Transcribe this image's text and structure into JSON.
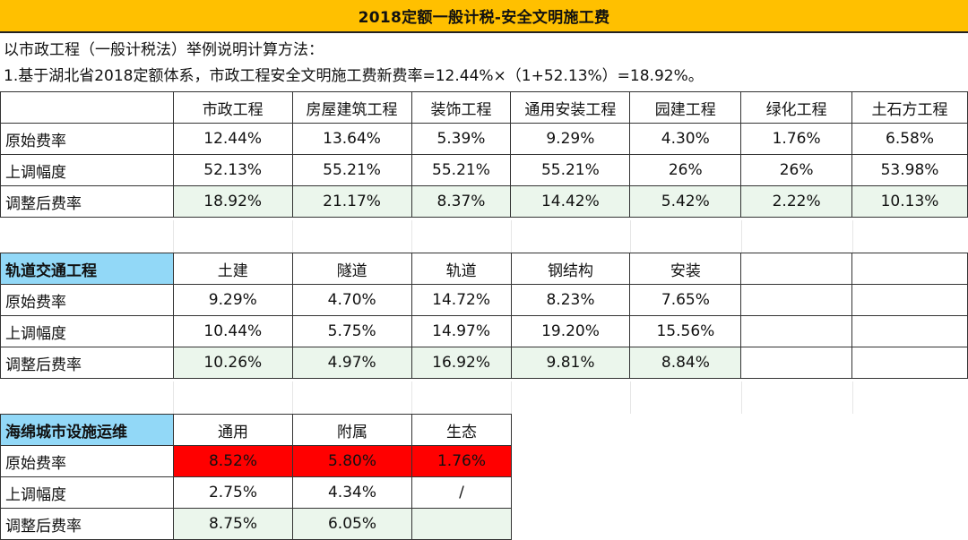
{
  "title": "2018定额一般计税-安全文明施工费",
  "notes": [
    "以市政工程（一般计税法）举例说明计算方法：",
    "1.基于湖北省2018定额体系，市政工程安全文明施工费新费率=12.44%×（1+52.13%）=18.92%。"
  ],
  "table1": {
    "headers": [
      "",
      "市政工程",
      "房屋建筑工程",
      "装饰工程",
      "通用安装工程",
      "园建工程",
      "绿化工程",
      "土石方工程"
    ],
    "rows": [
      [
        "原始费率",
        "12.44%",
        "13.64%",
        "5.39%",
        "9.29%",
        "4.30%",
        "1.76%",
        "6.58%"
      ],
      [
        "上调幅度",
        "52.13%",
        "55.21%",
        "55.21%",
        "55.21%",
        "26%",
        "26%",
        "53.98%"
      ],
      [
        "调整后费率",
        "18.92%",
        "21.17%",
        "8.37%",
        "14.42%",
        "5.42%",
        "2.22%",
        "10.13%"
      ]
    ]
  },
  "table2": {
    "headers": [
      "轨道交通工程",
      "土建",
      "隧道",
      "轨道",
      "钢结构",
      "安装",
      "",
      ""
    ],
    "rows": [
      [
        "原始费率",
        "9.29%",
        "4.70%",
        "14.72%",
        "8.23%",
        "7.65%",
        "",
        ""
      ],
      [
        "上调幅度",
        "10.44%",
        "5.75%",
        "14.97%",
        "19.20%",
        "15.56%",
        "",
        ""
      ],
      [
        "调整后费率",
        "10.26%",
        "4.97%",
        "16.92%",
        "9.81%",
        "8.84%",
        "",
        ""
      ]
    ]
  },
  "table3": {
    "headers": [
      "海绵城市设施运维",
      "通用",
      "附属",
      "生态"
    ],
    "rows": [
      [
        "原始费率",
        "8.52%",
        "5.80%",
        "1.76%"
      ],
      [
        "上调幅度",
        "2.75%",
        "4.34%",
        "/"
      ],
      [
        "调整后费率",
        "8.75%",
        "6.05%",
        ""
      ]
    ]
  },
  "colors": {
    "title_bg": "#FFC000",
    "section_header_bg": "#92D8F7",
    "adjusted_row_bg": "#EBF6EC",
    "highlight_red": "#FF0000"
  }
}
